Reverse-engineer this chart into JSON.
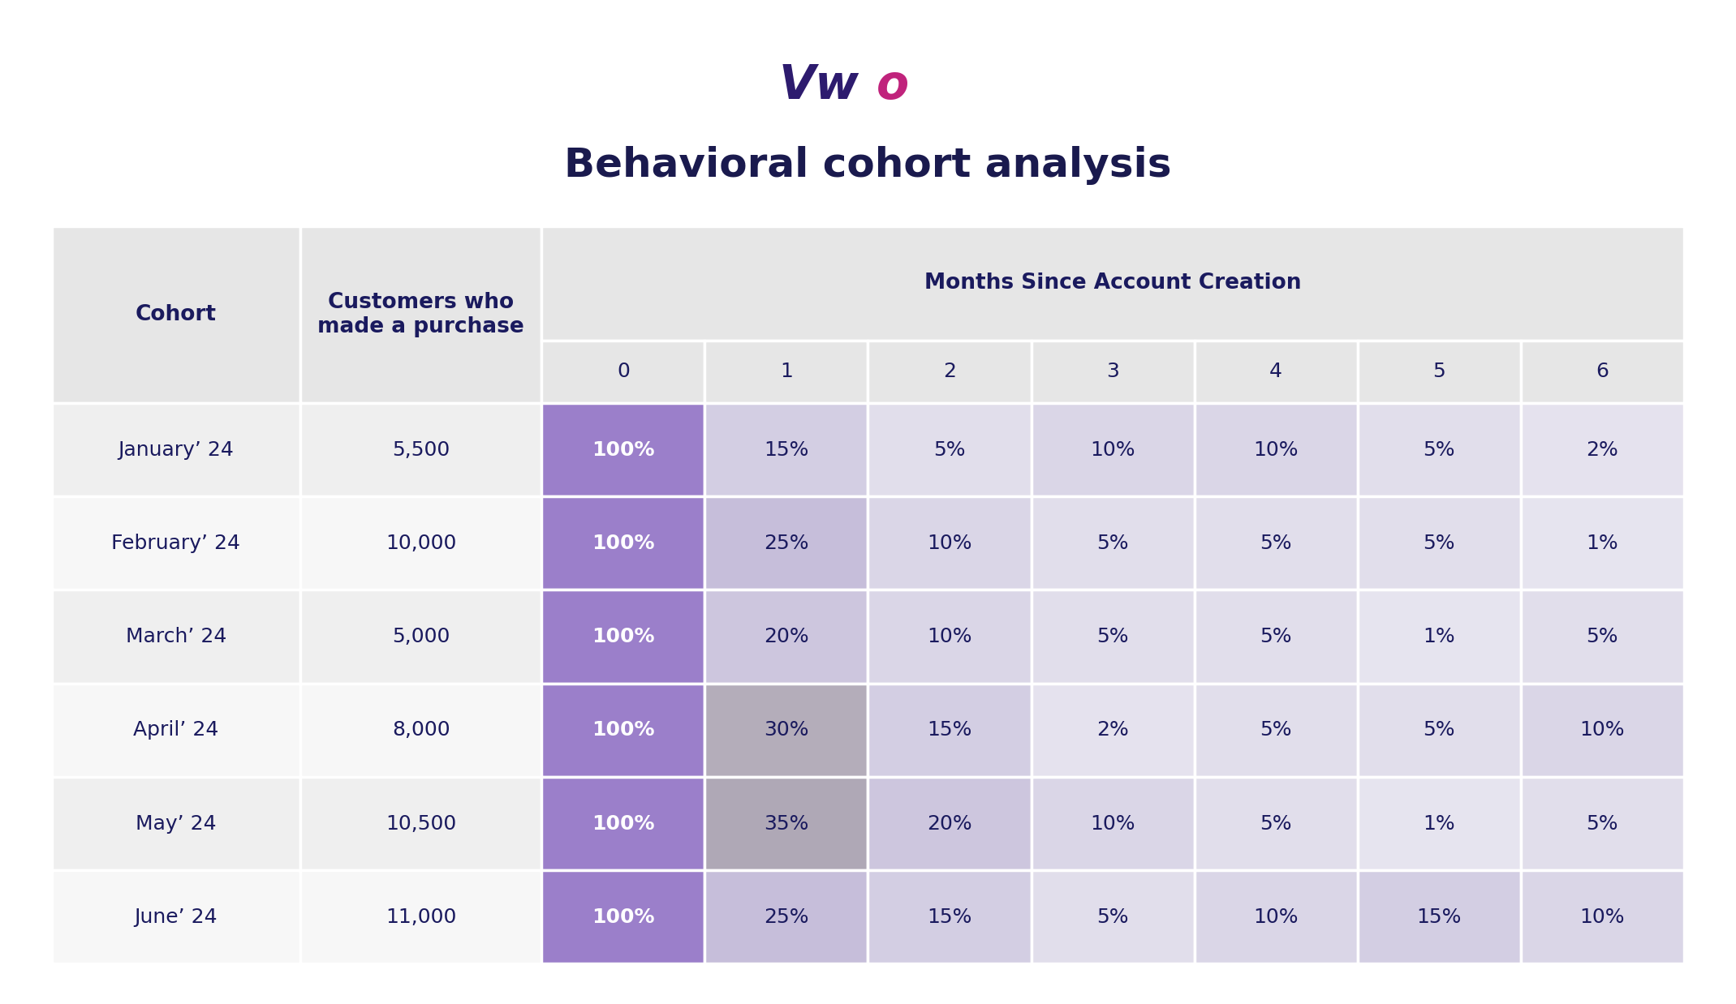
{
  "title": "Behavioral cohort analysis",
  "background_color": "#ffffff",
  "title_color": "#1a1a4e",
  "title_fontsize": 36,
  "cohorts": [
    "January’ 24",
    "February’ 24",
    "March’ 24",
    "April’ 24",
    "May’ 24",
    "June’ 24"
  ],
  "customers": [
    "5,500",
    "10,000",
    "5,000",
    "8,000",
    "10,500",
    "11,000"
  ],
  "months_header": "Months Since Account Creation",
  "month_labels": [
    "0",
    "1",
    "2",
    "3",
    "4",
    "5",
    "6"
  ],
  "data": [
    [
      "100%",
      "15%",
      "5%",
      "10%",
      "10%",
      "5%",
      "2%"
    ],
    [
      "100%",
      "25%",
      "10%",
      "5%",
      "5%",
      "5%",
      "1%"
    ],
    [
      "100%",
      "20%",
      "10%",
      "5%",
      "5%",
      "1%",
      "5%"
    ],
    [
      "100%",
      "30%",
      "15%",
      "2%",
      "5%",
      "5%",
      "10%"
    ],
    [
      "100%",
      "35%",
      "20%",
      "10%",
      "5%",
      "1%",
      "5%"
    ],
    [
      "100%",
      "25%",
      "15%",
      "5%",
      "10%",
      "15%",
      "10%"
    ]
  ],
  "values": [
    [
      100,
      15,
      5,
      10,
      10,
      5,
      2
    ],
    [
      100,
      25,
      10,
      5,
      5,
      5,
      1
    ],
    [
      100,
      20,
      10,
      5,
      5,
      1,
      5
    ],
    [
      100,
      30,
      15,
      2,
      5,
      5,
      10
    ],
    [
      100,
      35,
      20,
      10,
      5,
      1,
      5
    ],
    [
      100,
      25,
      15,
      5,
      10,
      15,
      10
    ]
  ],
  "col0_purple": "#9b7fca",
  "header_bg": "#e6e6e6",
  "row_bg_even": "#efefef",
  "row_bg_odd": "#f7f7f7",
  "text_dark": "#1a1a5e",
  "text_white": "#ffffff",
  "vwo_v_color": "#2d1b6e",
  "vwo_o_color": "#c0237c",
  "cell_base_light": [
    232,
    230,
    240
  ],
  "cell_base_dark": [
    185,
    175,
    210
  ],
  "cell_gray_light": [
    210,
    205,
    215
  ],
  "cell_gray_dark": [
    175,
    168,
    182
  ]
}
